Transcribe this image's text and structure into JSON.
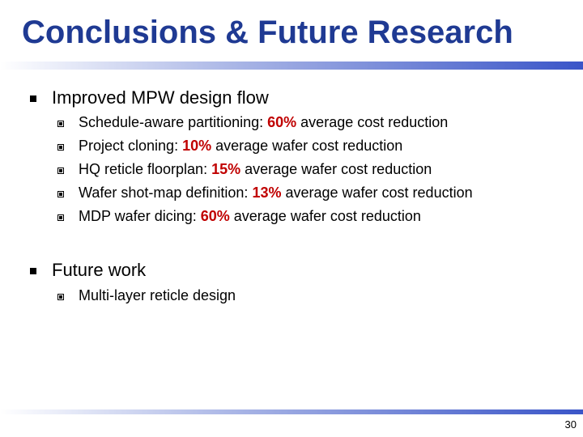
{
  "slide": {
    "title": "Conclusions & Future Research",
    "page_number": "30",
    "accent_color": "#1f3a93",
    "highlight_color": "#c00000"
  },
  "sections": [
    {
      "heading": "Improved MPW design flow",
      "items": [
        {
          "before": "Schedule-aware partitioning: ",
          "value": "60%",
          "after": " average cost reduction"
        },
        {
          "before": "Project cloning: ",
          "value": "10%",
          "after": " average wafer cost reduction"
        },
        {
          "before": "HQ reticle floorplan: ",
          "value": "15%",
          "after": " average wafer cost reduction"
        },
        {
          "before": "Wafer shot-map definition: ",
          "value": "13%",
          "after": " average wafer cost reduction"
        },
        {
          "before": "MDP wafer dicing: ",
          "value": "60%",
          "after": " average wafer cost reduction"
        }
      ]
    },
    {
      "heading": "Future work",
      "items": [
        {
          "before": "Multi-layer reticle design",
          "value": "",
          "after": ""
        }
      ]
    }
  ]
}
